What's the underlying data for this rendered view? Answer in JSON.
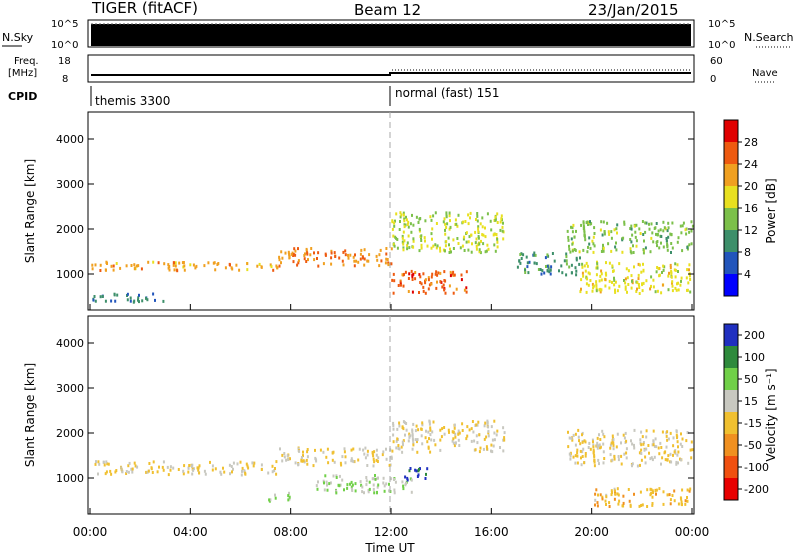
{
  "header": {
    "radar": "TIGER (fitACF)",
    "beam": "Beam 12",
    "date": "23/Jan/2015"
  },
  "top_panels": {
    "nsky_label": "N.Sky",
    "nsky_ticks": [
      "10^5",
      "10^0"
    ],
    "nsearch_label": "N.Search",
    "nsearch_ticks": [
      "10^5",
      "10^0"
    ],
    "freq_label": "Freq.",
    "freq_unit": "[MHz]",
    "freq_ticks": [
      "18",
      "8"
    ],
    "nave_label": "Nave",
    "nave_ticks": [
      "60",
      "0"
    ],
    "cpid_label": "CPID",
    "cpid_segments": [
      "themis 3300",
      "normal (fast) 151"
    ]
  },
  "chart_data": [
    {
      "type": "heatmap",
      "title": "",
      "xlabel": "",
      "ylabel": "Slant Range [km]",
      "x_ticks": [
        "00:00",
        "04:00",
        "08:00",
        "12:00",
        "16:00",
        "20:00",
        "00:00"
      ],
      "x_range_hours": [
        0,
        24
      ],
      "ylim": [
        200,
        4600
      ],
      "y_ticks": [
        1000,
        2000,
        3000,
        4000
      ],
      "colorbar_label": "Power [dB]",
      "colorbar_ticks": [
        4,
        8,
        12,
        16,
        20,
        24,
        28
      ],
      "colorbar_range": [
        0,
        32
      ],
      "colors": [
        "#0000ff",
        "#2255bb",
        "#3d8f6a",
        "#7cc04a",
        "#e8e020",
        "#f0a020",
        "#ee5a10",
        "#e00000"
      ],
      "features": [
        {
          "start_h": 0.0,
          "end_h": 7.5,
          "range_km": [
            1100,
            1300
          ],
          "level_db": 22
        },
        {
          "start_h": 7.5,
          "end_h": 12.0,
          "range_km": [
            1200,
            1600
          ],
          "level_db": 24
        },
        {
          "start_h": 12.0,
          "end_h": 16.5,
          "range_km": [
            1500,
            2400
          ],
          "level_db": 16
        },
        {
          "start_h": 12.0,
          "end_h": 15.0,
          "range_km": [
            600,
            1100
          ],
          "level_db": 26
        },
        {
          "start_h": 17.0,
          "end_h": 19.5,
          "range_km": [
            1000,
            1500
          ],
          "level_db": 10
        },
        {
          "start_h": 19.0,
          "end_h": 24.0,
          "range_km": [
            1500,
            2200
          ],
          "level_db": 14
        },
        {
          "start_h": 19.5,
          "end_h": 24.0,
          "range_km": [
            600,
            1300
          ],
          "level_db": 18
        },
        {
          "start_h": 0.0,
          "end_h": 3.0,
          "range_km": [
            400,
            600
          ],
          "level_db": 8
        }
      ]
    },
    {
      "type": "heatmap",
      "title": "",
      "xlabel": "Time UT",
      "ylabel": "Slant Range [km]",
      "x_ticks": [
        "00:00",
        "04:00",
        "08:00",
        "12:00",
        "16:00",
        "20:00",
        "00:00"
      ],
      "x_range_hours": [
        0,
        24
      ],
      "ylim": [
        200,
        4600
      ],
      "y_ticks": [
        1000,
        2000,
        3000,
        4000
      ],
      "colorbar_label": "Velocity [m s⁻¹]",
      "colorbar_ticks": [
        200,
        100,
        50,
        15,
        -15,
        -50,
        -100,
        -200
      ],
      "colorbar_range": [
        -250,
        250
      ],
      "colors": [
        "#2030c0",
        "#2e8a3c",
        "#70d048",
        "#c8c8c0",
        "#f0c030",
        "#f09020",
        "#f05010",
        "#e80000"
      ],
      "features": [
        {
          "start_h": 0.0,
          "end_h": 7.5,
          "range_km": [
            1100,
            1400
          ],
          "velocity": 0
        },
        {
          "start_h": 7.5,
          "end_h": 12.0,
          "range_km": [
            1300,
            1700
          ],
          "velocity": 0
        },
        {
          "start_h": 12.0,
          "end_h": 16.5,
          "range_km": [
            1600,
            2300
          ],
          "velocity": 0
        },
        {
          "start_h": 9.0,
          "end_h": 13.0,
          "range_km": [
            700,
            1100
          ],
          "velocity": 60
        },
        {
          "start_h": 12.5,
          "end_h": 13.5,
          "range_km": [
            950,
            1250
          ],
          "velocity": 200
        },
        {
          "start_h": 19.0,
          "end_h": 24.0,
          "range_km": [
            1300,
            2100
          ],
          "velocity": 0
        },
        {
          "start_h": 20.0,
          "end_h": 24.0,
          "range_km": [
            400,
            800
          ],
          "velocity": -40
        },
        {
          "start_h": 7.0,
          "end_h": 8.0,
          "range_km": [
            500,
            700
          ],
          "velocity": 60
        }
      ]
    }
  ]
}
